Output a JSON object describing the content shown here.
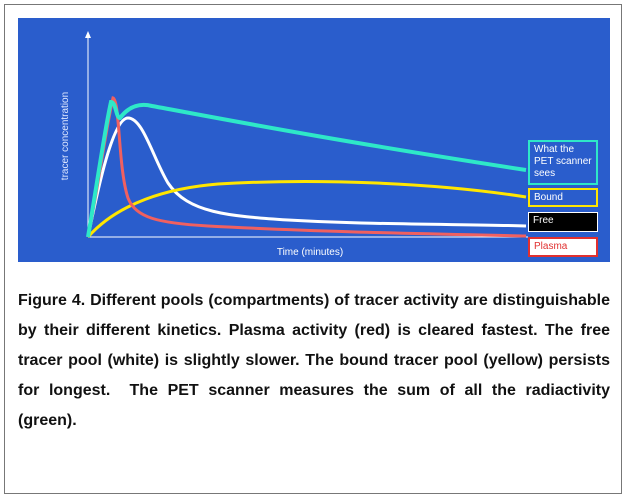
{
  "figure": {
    "ylabel": "tracer concentration",
    "xlabel": "Time (minutes)",
    "legend": [
      "What the PET scanner sees",
      "Bound",
      "Free",
      "Plasma"
    ],
    "caption": "Figure 4. Different pools (compartments) of tracer activity are distinguishable by their different kinetics. Plasma activity (red) is cleared fastest. The free tracer pool (white) is slightly slower. The bound tracer pool (yellow) persists for longest.  The PET scanner measures the sum of all the radiactivity (green)."
  }
}
